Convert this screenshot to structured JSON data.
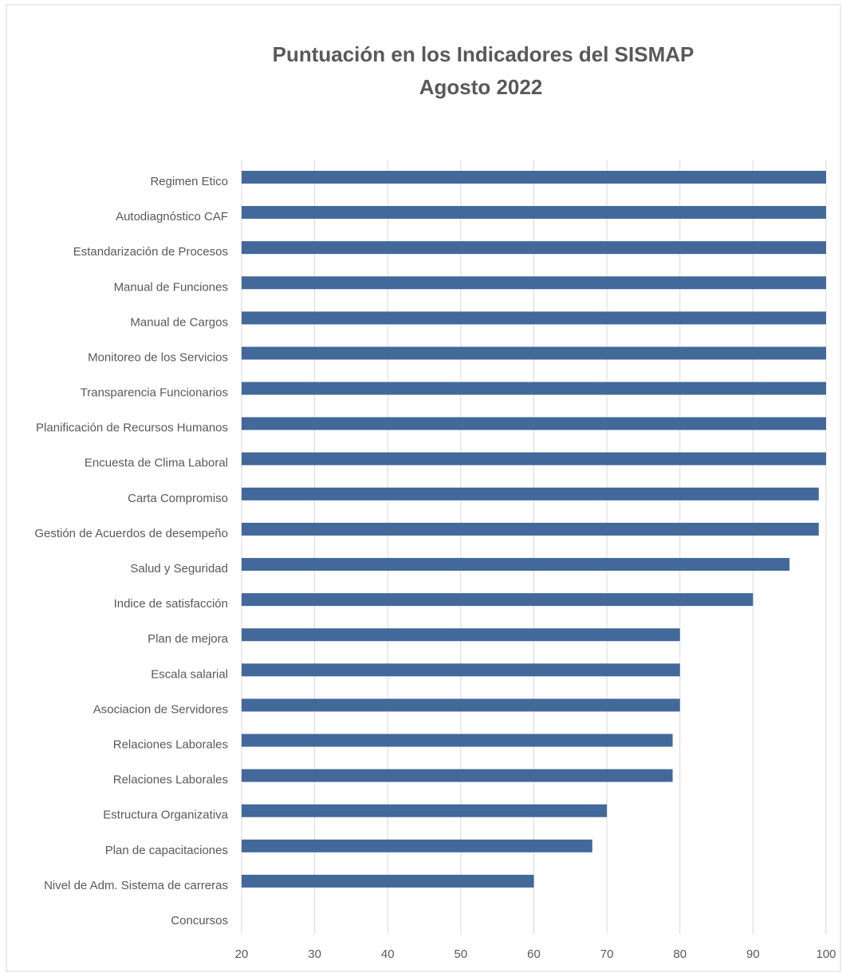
{
  "chart_data": {
    "type": "bar",
    "orientation": "horizontal",
    "title": "Puntuación en los Indicadores del SISMAP",
    "subtitle": "Agosto 2022",
    "categories": [
      "Regimen Etico",
      "Autodiagnóstico CAF",
      "Estandarización de Procesos",
      "Manual de Funciones",
      "Manual de Cargos",
      "Monitoreo de los Servicios",
      "Transparencia Funcionarios",
      "Planificación de Recursos Humanos",
      "Encuesta de Clima Laboral",
      "Carta Compromiso",
      "Gestión de Acuerdos de desempeño",
      "Salud y Seguridad",
      "Indice de satisfacción",
      "Plan de mejora",
      "Escala salarial",
      "Asociacion de Servidores",
      "Relaciones Laborales",
      "Relaciones Laborales",
      "Estructura Organizativa",
      "Plan de capacitaciones",
      "Nivel de Adm. Sistema de carreras",
      "Concursos"
    ],
    "values": [
      100,
      100,
      100,
      100,
      100,
      100,
      100,
      100,
      100,
      99,
      99,
      95,
      90,
      80,
      80,
      80,
      79,
      79,
      70,
      68,
      60,
      null
    ],
    "color": "#43689a",
    "xlim": [
      20,
      100
    ],
    "xticks": [
      20,
      30,
      40,
      50,
      60,
      70,
      80,
      90,
      100
    ],
    "grid": true
  }
}
